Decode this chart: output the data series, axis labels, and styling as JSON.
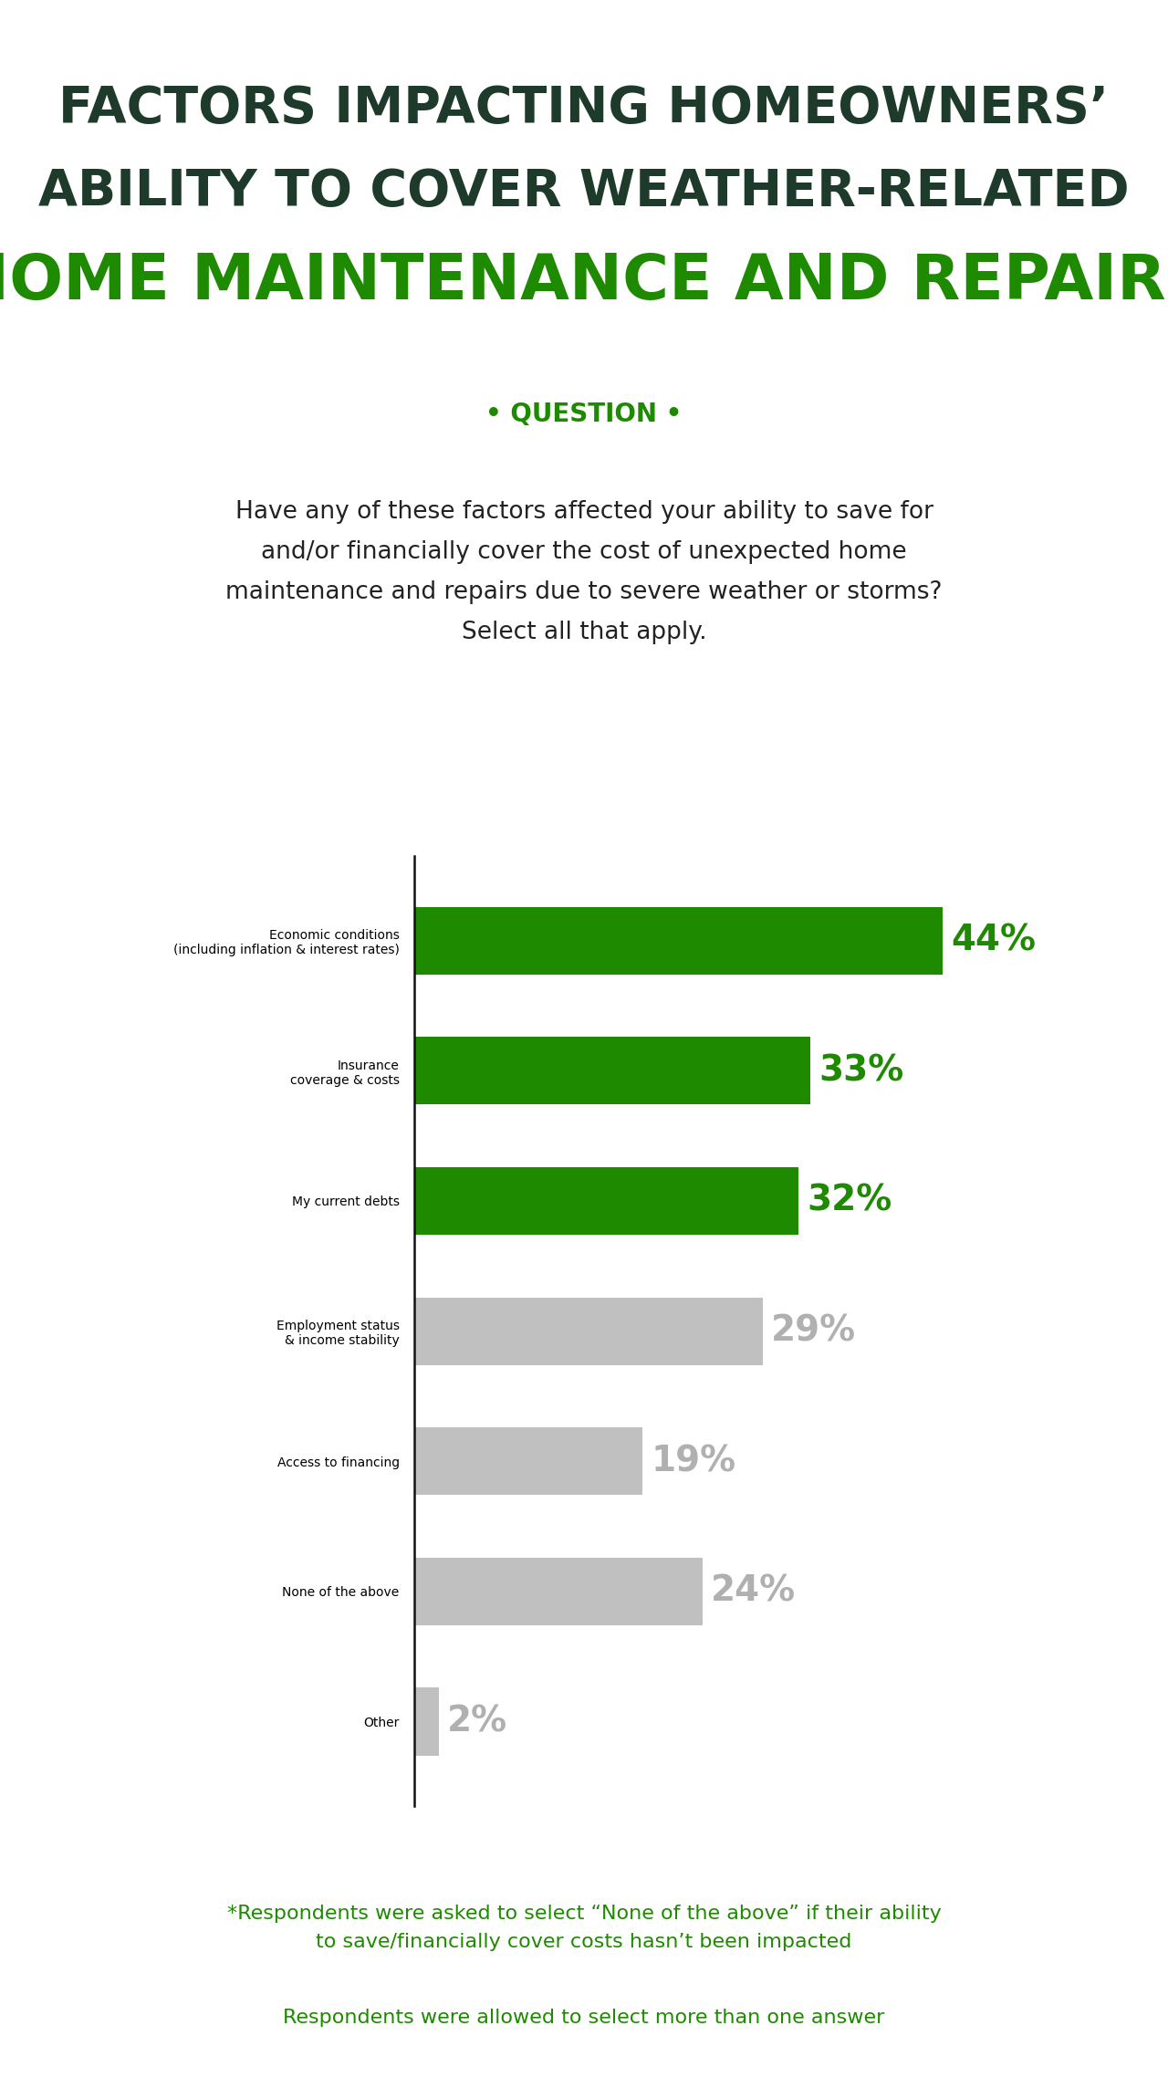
{
  "title_line1": "FACTORS IMPACTING HOMEOWNERS’",
  "title_line2": "ABILITY TO COVER WEATHER-RELATED",
  "title_line3": "HOME MAINTENANCE AND REPAIRS",
  "title_color_dark": "#1e3a2a",
  "title_color_green": "#1e8a00",
  "question_label": "• QUESTION •",
  "question_text": "Have any of these factors affected your ability to save for\nand/or financially cover the cost of unexpected home\nmaintenance and repairs due to severe weather or storms?\nSelect all that apply.",
  "question_box_color": "#e5e5e5",
  "categories": [
    "Economic conditions\n(including inflation & interest rates)",
    "Insurance\ncoverage & costs",
    "My current debts",
    "Employment status\n& income stability",
    "Access to financing",
    "None of the above",
    "Other"
  ],
  "values": [
    44,
    33,
    32,
    29,
    19,
    24,
    2
  ],
  "bar_colors": [
    "#1e8a00",
    "#1e8a00",
    "#1e8a00",
    "#c0c0c0",
    "#c0c0c0",
    "#c0c0c0",
    "#c0c0c0"
  ],
  "value_colors": [
    "#1e8a00",
    "#1e8a00",
    "#1e8a00",
    "#b0b0b0",
    "#b0b0b0",
    "#b0b0b0",
    "#b0b0b0"
  ],
  "footnote1": "*Respondents were asked to select “None of the above” if their ability\nto save/financially cover costs hasn’t been impacted",
  "footnote2": "Respondents were allowed to select more than one answer",
  "footnote_color": "#1e8a00",
  "bg_color": "#ffffff",
  "label_fontsize": 22,
  "value_fontsize": 28,
  "title1_fontsize": 40,
  "title2_fontsize": 40,
  "title3_fontsize": 50,
  "question_label_fontsize": 20,
  "question_text_fontsize": 19,
  "footnote_fontsize": 16
}
